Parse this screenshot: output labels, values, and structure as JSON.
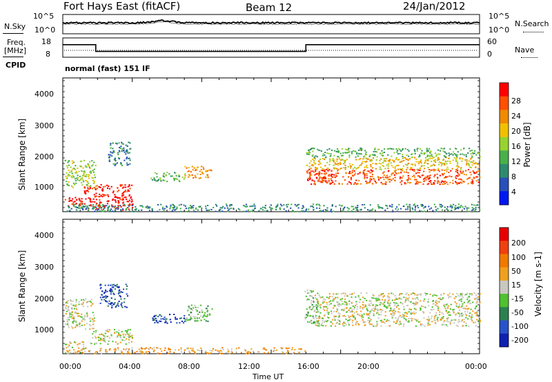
{
  "header": {
    "radar": "Fort Hays East (fitACF)",
    "beam": "Beam 12",
    "date": "24/Jan/2012"
  },
  "noise_panel": {
    "left_label": "N.Sky",
    "left_ticks": [
      "10^5",
      "10^0"
    ],
    "right_label": "N.Search",
    "right_ticks": [
      "10^5",
      "10^0"
    ]
  },
  "freq_panel": {
    "left_label_top": "Freq.",
    "left_label_bottom": "[MHz]",
    "left_ticks": [
      "18",
      "8"
    ],
    "right_label": "Nave",
    "right_ticks": [
      "60",
      "0"
    ],
    "cpid_label": "CPID",
    "cpid_text": "normal (fast) 151 IF",
    "freq_steps": [
      {
        "from_hour": 0,
        "to_hour": 1.9,
        "mhz": 14.5
      },
      {
        "from_hour": 1.9,
        "to_hour": 14.0,
        "mhz": 11.0
      },
      {
        "from_hour": 14.0,
        "to_hour": 24.0,
        "mhz": 14.5
      }
    ],
    "freq_range": [
      8,
      18
    ]
  },
  "power_panel": {
    "ylabel": "Slant Range [km]",
    "yticks": [
      "4000",
      "3000",
      "2000",
      "1000"
    ],
    "colorbar_label": "Power [dB]",
    "colorbar_ticks": [
      "28",
      "24",
      "20",
      "16",
      "12",
      "8",
      "4"
    ]
  },
  "velocity_panel": {
    "ylabel": "Slant Range [km]",
    "yticks": [
      "4000",
      "3000",
      "2000",
      "1000"
    ],
    "colorbar_label": "Velocity [m s-1]",
    "colorbar_ticks": [
      "200",
      "100",
      "50",
      "15",
      "-15",
      "-50",
      "-100",
      "-200"
    ]
  },
  "x_axis": {
    "label": "Time UT",
    "ticks": [
      "00:00",
      "04:00",
      "08:00",
      "12:00",
      "16:00",
      "20:00",
      "00:00"
    ]
  },
  "colors": {
    "power_scale": [
      "#0018f0",
      "#2850b8",
      "#2e8a6e",
      "#49b04a",
      "#98d230",
      "#f0c000",
      "#f08a00",
      "#ff5000",
      "#ff0000"
    ],
    "velocity_scale": [
      "#1020b0",
      "#2a52c8",
      "#2c8050",
      "#50c030",
      "#c8c8c0",
      "#f0a020",
      "#f07a00",
      "#f04010",
      "#e80000"
    ]
  },
  "chart_data": {
    "type": "heatmap",
    "x_range_hours": [
      0,
      24
    ],
    "y_range_km": [
      180,
      4600
    ],
    "power_regions": [
      {
        "t0": 0.1,
        "t1": 1.1,
        "r0": 350,
        "r1": 700,
        "level": 8
      },
      {
        "t0": 1.2,
        "t1": 4.0,
        "r0": 250,
        "r1": 1100,
        "level": 8
      },
      {
        "t0": 0.1,
        "t1": 1.9,
        "r0": 1000,
        "r1": 1900,
        "level": 4
      },
      {
        "t0": 2.6,
        "t1": 3.9,
        "r0": 1700,
        "r1": 2500,
        "level": 2
      },
      {
        "t0": 5.0,
        "t1": 7.0,
        "r0": 1200,
        "r1": 1500,
        "level": 3
      },
      {
        "t0": 7.0,
        "t1": 8.6,
        "r0": 1300,
        "r1": 1700,
        "level": 6
      },
      {
        "t0": 14.0,
        "t1": 15.5,
        "r0": 1200,
        "r1": 1600,
        "level": 8
      },
      {
        "t0": 14.0,
        "t1": 24.0,
        "r0": 1100,
        "r1": 1600,
        "level": 7
      },
      {
        "t0": 14.0,
        "t1": 24.0,
        "r0": 1600,
        "r1": 2000,
        "level": 5
      },
      {
        "t0": 14.0,
        "t1": 24.0,
        "r0": 2000,
        "r1": 2300,
        "level": 3
      },
      {
        "t0": 0.2,
        "t1": 24.0,
        "r0": 200,
        "r1": 450,
        "level": 2
      }
    ],
    "velocity_regions": [
      {
        "t0": 0.1,
        "t1": 1.2,
        "r0": 200,
        "r1": 600,
        "level": 4
      },
      {
        "t0": 1.5,
        "t1": 4.0,
        "r0": 500,
        "r1": 1000,
        "level": 4
      },
      {
        "t0": 0.1,
        "t1": 1.8,
        "r0": 1000,
        "r1": 2000,
        "level": 4
      },
      {
        "t0": 2.1,
        "t1": 3.7,
        "r0": 1700,
        "r1": 2500,
        "level": 1
      },
      {
        "t0": 5.0,
        "t1": 7.0,
        "r0": 1200,
        "r1": 1500,
        "level": 1
      },
      {
        "t0": 7.0,
        "t1": 8.6,
        "r0": 1250,
        "r1": 1800,
        "level": 3
      },
      {
        "t0": 13.9,
        "t1": 14.6,
        "r0": 1200,
        "r1": 2300,
        "level": 3
      },
      {
        "t0": 14.5,
        "t1": 24.0,
        "r0": 1100,
        "r1": 2200,
        "level": 4
      },
      {
        "t0": 0.5,
        "t1": 14.0,
        "r0": 200,
        "r1": 400,
        "level": 5
      }
    ]
  }
}
